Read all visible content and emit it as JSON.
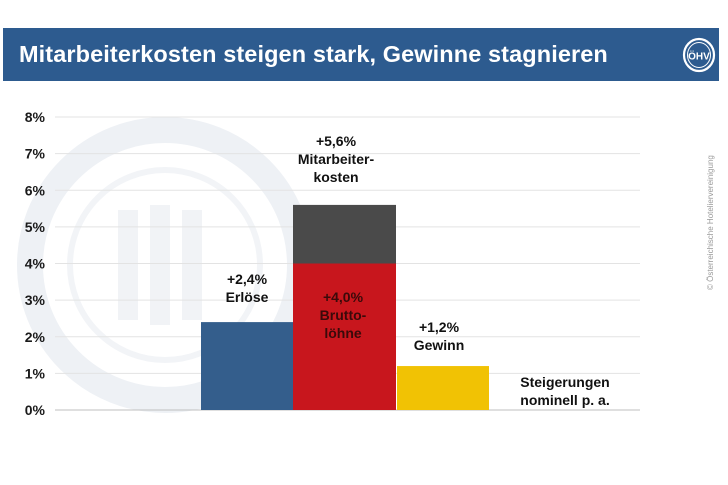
{
  "header": {
    "title": "Mitarbeiterkosten steigen stark, Gewinne stagnieren",
    "logo_text": "ÖHV",
    "background": "#2d5b8f"
  },
  "side_note": "© Österreichische Hoteliervereinigung",
  "chart_data": {
    "type": "bar",
    "title": "",
    "xlabel": "",
    "ylabel": "",
    "ylim": [
      0,
      8
    ],
    "yticks": [
      "0%",
      "1%",
      "2%",
      "3%",
      "4%",
      "5%",
      "6%",
      "7%",
      "8%"
    ],
    "grid": true,
    "bars": [
      {
        "value": 2.4,
        "color": "#345e8c",
        "label": [
          "+2,4%",
          "Erlöse"
        ]
      },
      {
        "value": 5.6,
        "color": "#4a4a4a",
        "label": [
          "+5,6%",
          "Mitarbeiter-",
          "kosten"
        ]
      },
      {
        "value": 4.0,
        "color": "#c8161d",
        "label": [
          "+4,0%",
          "Brutto-",
          "löhne"
        ]
      },
      {
        "value": 1.2,
        "color": "#f1c204",
        "label": [
          "+1,2%",
          "Gewinn"
        ]
      }
    ],
    "note": [
      "Steigerungen",
      "nominell p. a."
    ]
  }
}
